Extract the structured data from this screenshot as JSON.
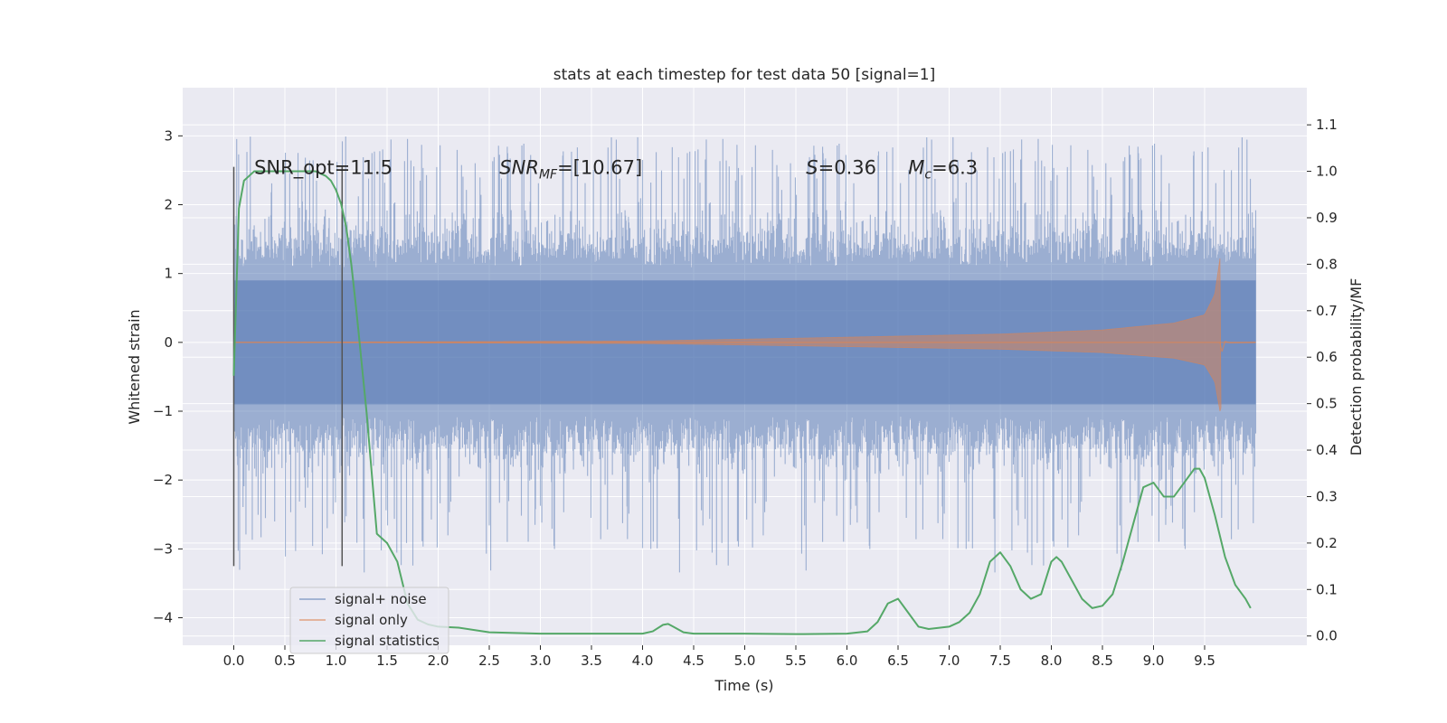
{
  "chart_data": {
    "type": "line",
    "title": "stats at each timestep for test data 50 [signal=1]",
    "xlabel": "Time (s)",
    "ylabel": "Whitened strain",
    "y2label": "Detection probability/MF",
    "xlim": [
      -0.5,
      10.5
    ],
    "ylim": [
      -4.4,
      3.7
    ],
    "y2lim": [
      -0.02,
      1.18
    ],
    "xticks": [
      "0.0",
      "0.5",
      "1.0",
      "1.5",
      "2.0",
      "2.5",
      "3.0",
      "3.5",
      "4.0",
      "4.5",
      "5.0",
      "5.5",
      "6.0",
      "6.5",
      "7.0",
      "7.5",
      "8.0",
      "8.5",
      "9.0",
      "9.5"
    ],
    "yticks": [
      "3",
      "2",
      "1",
      "0",
      "−1",
      "−2",
      "−3",
      "−4"
    ],
    "y2ticks": [
      "1.1",
      "1.0",
      "0.9",
      "0.8",
      "0.7",
      "0.6",
      "0.5",
      "0.4",
      "0.3",
      "0.2",
      "0.1",
      "0.0"
    ],
    "grid": true,
    "legend_position": "lower-left",
    "colors": {
      "background": "#eaeaf2",
      "grid": "#ffffff",
      "noise": "#4c72b0",
      "signal": "#dd8452",
      "stats": "#55a868",
      "markers": "#555555"
    },
    "series": [
      {
        "name": "signal+ noise",
        "kind": "noisy strain",
        "x_range": [
          0.0,
          10.0
        ],
        "core_amplitude": 1.0,
        "peak_max": 3.35,
        "peak_min": -3.35
      },
      {
        "name": "signal only",
        "kind": "chirp",
        "x_range": [
          0.0,
          10.0
        ],
        "merger_time": 9.65,
        "peak_amplitude": 1.22,
        "envelope": [
          [
            4.0,
            0.02
          ],
          [
            5.5,
            0.06
          ],
          [
            6.5,
            0.09
          ],
          [
            7.5,
            0.12
          ],
          [
            8.5,
            0.18
          ],
          [
            9.2,
            0.28
          ],
          [
            9.5,
            0.4
          ],
          [
            9.6,
            0.7
          ],
          [
            9.65,
            1.22
          ]
        ]
      },
      {
        "name": "signal statistics",
        "x": [
          0.0,
          0.05,
          0.1,
          0.15,
          0.2,
          0.3,
          0.4,
          0.5,
          0.6,
          0.7,
          0.8,
          0.9,
          0.95,
          1.0,
          1.05,
          1.1,
          1.15,
          1.2,
          1.3,
          1.4,
          1.5,
          1.6,
          1.7,
          1.8,
          1.9,
          2.0,
          2.2,
          2.5,
          3.0,
          3.5,
          4.0,
          4.1,
          4.2,
          4.25,
          4.3,
          4.4,
          4.5,
          5.0,
          5.5,
          6.0,
          6.2,
          6.3,
          6.4,
          6.5,
          6.6,
          6.7,
          6.8,
          7.0,
          7.1,
          7.2,
          7.3,
          7.4,
          7.5,
          7.6,
          7.7,
          7.8,
          7.9,
          8.0,
          8.05,
          8.1,
          8.2,
          8.3,
          8.4,
          8.5,
          8.6,
          8.7,
          8.8,
          8.9,
          9.0,
          9.1,
          9.2,
          9.3,
          9.4,
          9.45,
          9.5,
          9.6,
          9.7,
          9.8,
          9.9,
          9.95
        ],
        "values": [
          0.56,
          0.92,
          0.98,
          0.99,
          1.0,
          1.0,
          1.0,
          1.0,
          1.0,
          1.0,
          1.0,
          0.99,
          0.98,
          0.96,
          0.93,
          0.88,
          0.8,
          0.7,
          0.48,
          0.22,
          0.2,
          0.16,
          0.07,
          0.035,
          0.025,
          0.02,
          0.018,
          0.008,
          0.005,
          0.005,
          0.005,
          0.01,
          0.024,
          0.026,
          0.02,
          0.008,
          0.005,
          0.005,
          0.004,
          0.005,
          0.01,
          0.03,
          0.07,
          0.08,
          0.05,
          0.02,
          0.015,
          0.02,
          0.03,
          0.05,
          0.09,
          0.16,
          0.18,
          0.15,
          0.1,
          0.08,
          0.09,
          0.16,
          0.17,
          0.16,
          0.12,
          0.08,
          0.06,
          0.065,
          0.09,
          0.16,
          0.24,
          0.32,
          0.33,
          0.3,
          0.3,
          0.33,
          0.36,
          0.36,
          0.34,
          0.26,
          0.17,
          0.11,
          0.08,
          0.06
        ]
      }
    ],
    "vertical_markers": [
      0.0,
      1.06
    ],
    "annotations": [
      {
        "text": "SNR_opt=11.5",
        "x": 0.2,
        "y": 2.55
      },
      {
        "text_main": "SNR",
        "text_sub": "MF",
        "text_rest": "=[10.67]",
        "x": 2.6,
        "y": 2.55
      },
      {
        "text_main": "S",
        "text_rest": "=0.36",
        "x": 5.6,
        "y": 2.55
      },
      {
        "text_main": "M",
        "text_sub": "c",
        "text_rest": "=6.3",
        "x": 6.6,
        "y": 2.55
      }
    ]
  }
}
